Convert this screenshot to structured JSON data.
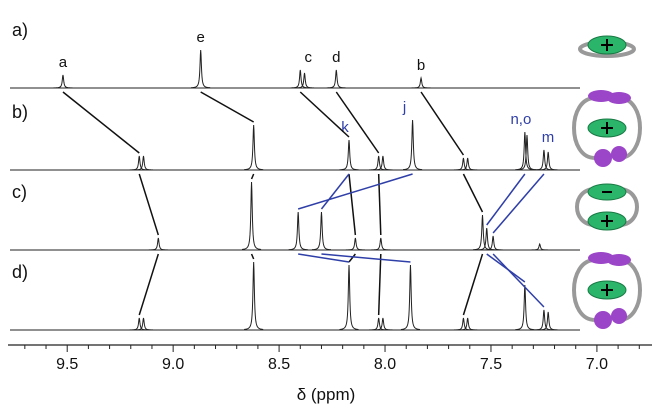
{
  "chart_data": {
    "type": "spectrum",
    "x_label": "δ (ppm)",
    "xlim": [
      9.77,
      6.74
    ],
    "xticks": [
      9.5,
      {
        "value": 9,
        "label": "9.0"
      },
      8.5,
      {
        "value": 8,
        "label": "8.0"
      },
      7.5,
      {
        "value": 7,
        "label": "7.0"
      }
    ],
    "xminorticks": [
      9.7,
      9.6,
      9.4,
      9.3,
      9.2,
      9.1,
      8.9,
      8.8,
      8.7,
      8.6,
      8.4,
      8.3,
      8.2,
      8.1,
      7.9,
      7.8,
      7.7,
      7.6,
      7.4,
      7.3,
      7.2,
      7.1,
      6.9,
      6.8
    ],
    "ylim": [
      0,
      80
    ],
    "color": "#222222",
    "link_colors": [
      "#111111",
      "#2f3fa8"
    ],
    "series": [
      {
        "name": "a)",
        "x": [
          9.52,
          8.87,
          8.4,
          8.38,
          8.23,
          7.83
        ],
        "values": [
          13,
          38,
          18,
          15,
          18,
          10
        ],
        "peak_labels": [
          "a",
          "e",
          "c",
          "d",
          "b"
        ],
        "label_color": "#111111"
      },
      {
        "name": "b)",
        "x": [
          9.16,
          9.14,
          8.62,
          8.17,
          8.03,
          8.01,
          7.87,
          7.63,
          7.61,
          7.34,
          7.33,
          7.25,
          7.23
        ],
        "values": [
          14,
          14,
          45,
          30,
          14,
          14,
          50,
          12,
          12,
          38,
          35,
          20,
          18
        ],
        "peak_labels": [
          "k",
          "j",
          "n,o",
          "m"
        ],
        "label_color": "#2f3fa8"
      },
      {
        "name": "c)",
        "x": [
          9.07,
          8.63,
          8.41,
          8.3,
          8.14,
          8.02,
          7.54,
          7.52,
          7.49,
          7.27
        ],
        "values": [
          12,
          68,
          38,
          38,
          12,
          12,
          35,
          22,
          14,
          6
        ]
      },
      {
        "name": "d)",
        "x": [
          9.16,
          9.14,
          8.62,
          8.17,
          8.03,
          8.01,
          7.88,
          7.63,
          7.61,
          7.34,
          7.25,
          7.23
        ],
        "values": [
          12,
          12,
          68,
          65,
          12,
          12,
          65,
          12,
          12,
          45,
          20,
          18
        ]
      }
    ]
  }
}
